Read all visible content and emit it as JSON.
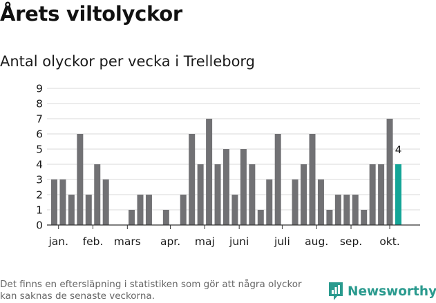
{
  "header": {
    "title": "Årets viltolyckor",
    "subtitle": "Antal olyckor per vecka i Trelleborg"
  },
  "footer": {
    "note": "Det finns en eftersläpning i statistiken som gör att några olyckor kan saknas de senaste veckorna.",
    "brand": "Newsworthy",
    "brand_icon": "newsworthy-logo-icon"
  },
  "colors": {
    "bar": "#717174",
    "highlight": "#14a597",
    "brand": "#2a9a8e",
    "grid": "#d9d9d9"
  },
  "chart_data": {
    "type": "bar",
    "title": "Antal olyckor per vecka i Trelleborg",
    "xlabel": "",
    "ylabel": "",
    "ylim": [
      0,
      9
    ],
    "yticks": [
      0,
      1,
      2,
      3,
      4,
      5,
      6,
      7,
      8,
      9
    ],
    "grid": true,
    "weeks": [
      1,
      2,
      3,
      4,
      5,
      6,
      7,
      8,
      9,
      10,
      11,
      12,
      13,
      14,
      15,
      16,
      17,
      18,
      19,
      20,
      21,
      22,
      23,
      24,
      25,
      26,
      27,
      28,
      29,
      30,
      31,
      32,
      33,
      34,
      35,
      36,
      37,
      38,
      39,
      40,
      41
    ],
    "values": [
      3,
      3,
      2,
      6,
      2,
      4,
      3,
      0,
      0,
      1,
      2,
      2,
      0,
      1,
      0,
      2,
      6,
      4,
      7,
      4,
      5,
      2,
      5,
      4,
      1,
      3,
      6,
      0,
      3,
      4,
      6,
      3,
      1,
      2,
      2,
      2,
      1,
      4,
      4,
      7,
      4
    ],
    "highlight_week": 41,
    "highlight_label": "4",
    "month_ticks": [
      {
        "label": "jan.",
        "week": 1.5
      },
      {
        "label": "feb.",
        "week": 5.5
      },
      {
        "label": "mars",
        "week": 9.5
      },
      {
        "label": "apr.",
        "week": 14.5
      },
      {
        "label": "maj",
        "week": 18.5
      },
      {
        "label": "juni",
        "week": 22.5
      },
      {
        "label": "juli",
        "week": 27.5
      },
      {
        "label": "aug.",
        "week": 31.5
      },
      {
        "label": "sep.",
        "week": 35.5
      },
      {
        "label": "okt.",
        "week": 40
      }
    ]
  }
}
